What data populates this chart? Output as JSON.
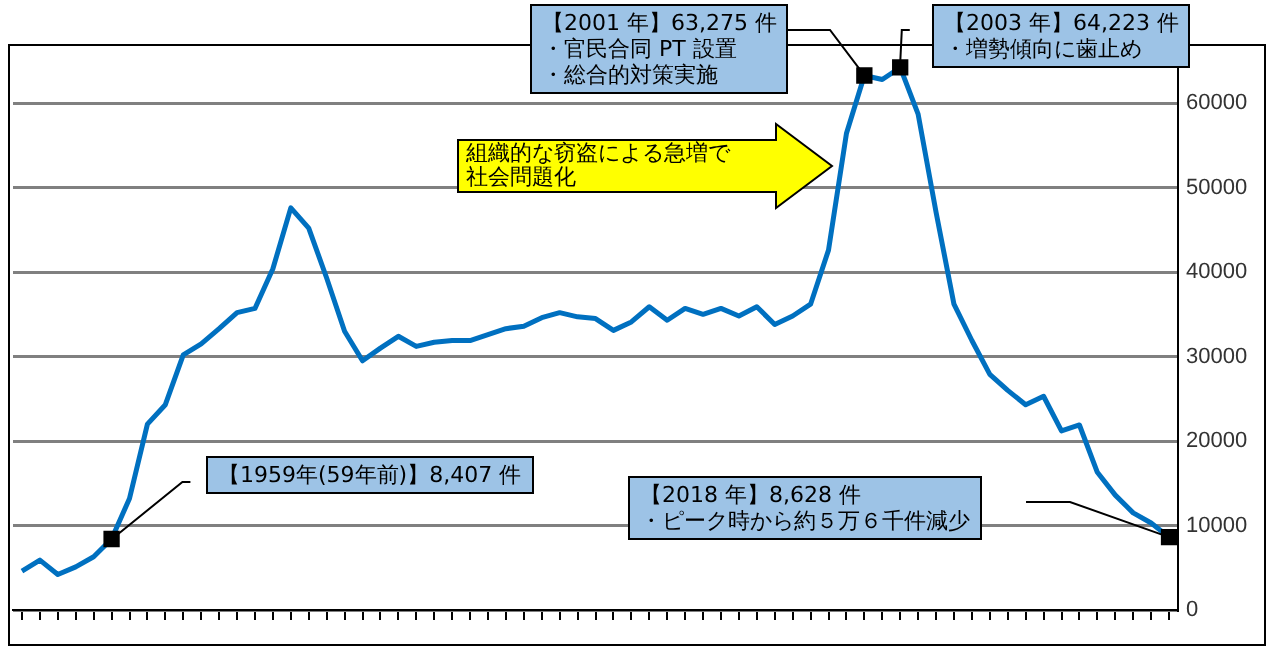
{
  "chart_data": {
    "type": "line",
    "categories": [
      null,
      null,
      null,
      null,
      null,
      null,
      null,
      null,
      null,
      null,
      null,
      null,
      null,
      null,
      null,
      null,
      null,
      null,
      null,
      null,
      null,
      null,
      null,
      null,
      null,
      null,
      null,
      null,
      null,
      null,
      null,
      null,
      null,
      null,
      null,
      null,
      null,
      null,
      null,
      null,
      null,
      null,
      null,
      null,
      null,
      null,
      null,
      null,
      null,
      null,
      null,
      null,
      null,
      null,
      null,
      null,
      null,
      null,
      null,
      null,
      null,
      null,
      null,
      null,
      null
    ],
    "series": [
      {
        "color": "#0070c0",
        "values": [
          4600,
          5900,
          4200,
          5100,
          6300,
          8407,
          13200,
          22000,
          24300,
          30200,
          31500,
          33300,
          35200,
          35700,
          40400,
          47600,
          45200,
          39300,
          33000,
          29500,
          31000,
          32400,
          31200,
          31700,
          31900,
          31900,
          32600,
          33300,
          33600,
          34600,
          35200,
          34700,
          34500,
          33100,
          34100,
          35900,
          34300,
          35700,
          35000,
          35700,
          34800,
          35900,
          33800,
          34800,
          36200,
          42600,
          56400,
          63275,
          62800,
          64223,
          58700,
          47100,
          36200,
          31900,
          27900,
          26000,
          24300,
          25300,
          21200,
          21900,
          16300,
          13600,
          11500,
          10300,
          8628
        ]
      }
    ],
    "ylim": [
      0,
      67000
    ],
    "yticks": [
      0,
      10000,
      20000,
      30000,
      40000,
      50000,
      60000
    ],
    "grid": "y",
    "tick_labels": "y",
    "annotations": [
      "【1959年(59年前)】8,407 件",
      "【2001 年】63,275 件",
      "・官民合同 PT 設置",
      "・総合的対策実施",
      "【2003 年】64,223 件",
      "・増勢傾向に歯止め",
      "【2018 年】8,628 件",
      "・ピーク時から約５万６千件減少",
      "組織的な窃盗による急増で社会問題化"
    ]
  }
}
